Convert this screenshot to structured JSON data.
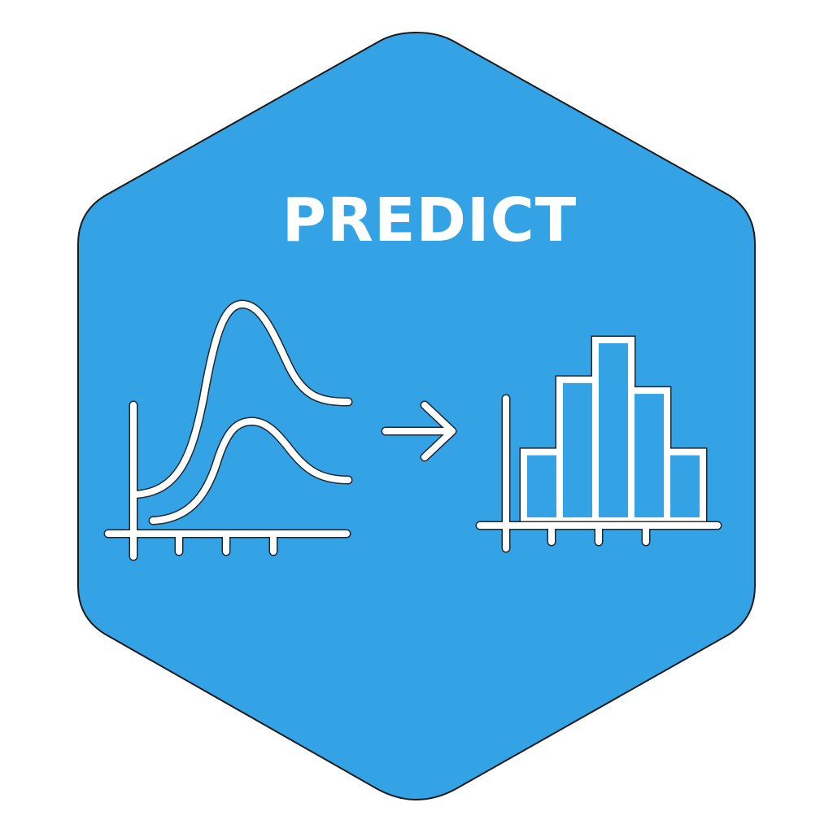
{
  "badge": {
    "title": "PREDICT",
    "fill_color": "#33a3e6",
    "outline_color": "#1b1b1b",
    "icon_color": "#ffffff"
  },
  "icons": {
    "left": "density-curves-icon",
    "middle": "right-arrow-icon",
    "right": "histogram-icon"
  },
  "histogram": {
    "bar_heights": [
      0.38,
      0.78,
      1.0,
      0.72,
      0.38
    ]
  }
}
